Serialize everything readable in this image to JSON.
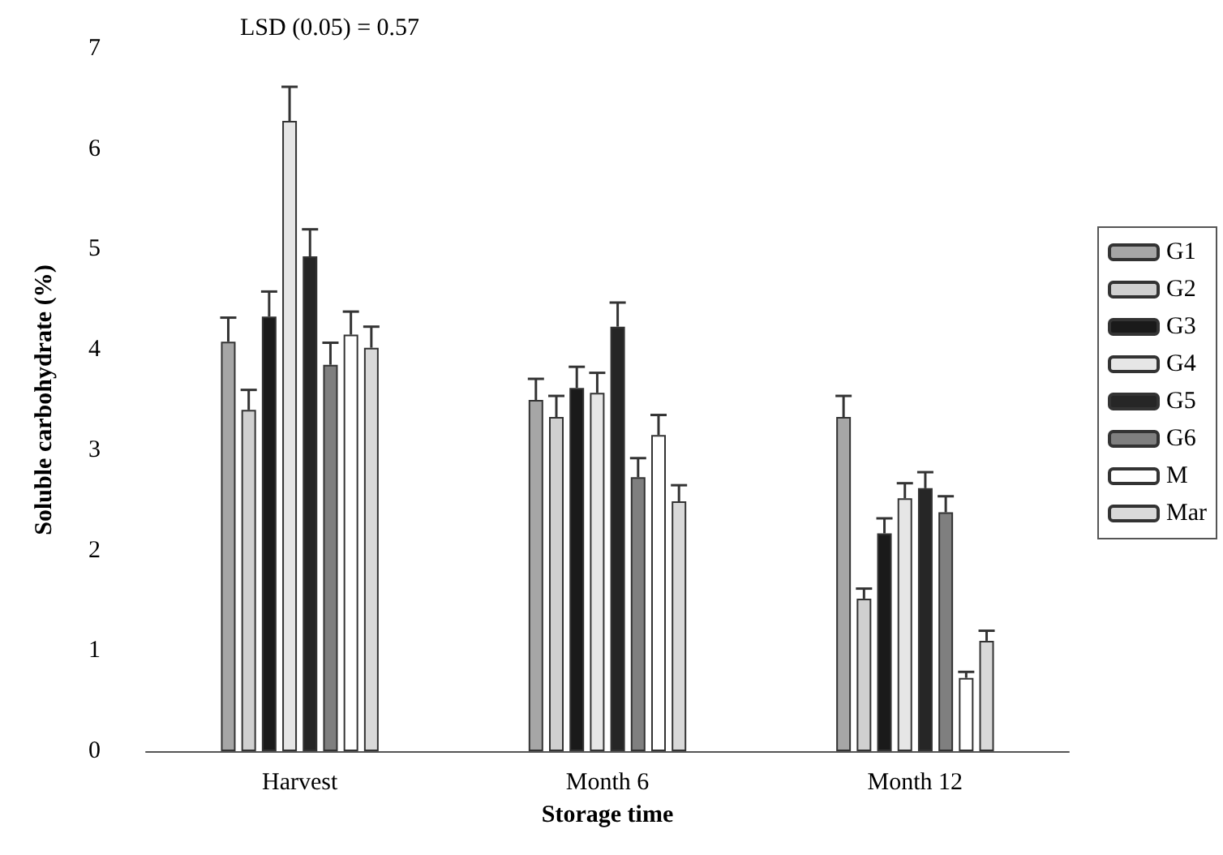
{
  "chart_data": {
    "type": "bar",
    "categories": [
      "Harvest",
      "Month 6",
      "Month 12"
    ],
    "xlabel": "Storage time",
    "ylabel": "Soluble carbohydrate (%)",
    "annotations": [
      "LSD (0.05) = 0.57"
    ],
    "ylim": [
      0,
      7
    ],
    "yticks": [
      0,
      1,
      2,
      3,
      4,
      5,
      6,
      7
    ],
    "grid": false,
    "legend": "right",
    "series": [
      {
        "name": "G1",
        "color": "#a6a6a6",
        "values": [
          4.08,
          3.5,
          3.33
        ],
        "errors": [
          [
            4.08,
            4.32
          ],
          [
            3.5,
            3.71
          ],
          [
            3.33,
            3.54
          ]
        ]
      },
      {
        "name": "G2",
        "color": "#d0d0d0",
        "values": [
          3.4,
          3.33,
          1.52
        ],
        "errors": [
          [
            3.4,
            3.6
          ],
          [
            3.33,
            3.54
          ],
          [
            1.52,
            1.62
          ]
        ]
      },
      {
        "name": "G3",
        "color": "#1a1a1a",
        "values": [
          4.33,
          3.62,
          2.17
        ],
        "errors": [
          [
            4.33,
            4.58
          ],
          [
            3.62,
            3.83
          ],
          [
            2.17,
            2.32
          ]
        ]
      },
      {
        "name": "G4",
        "color": "#e6e6e6",
        "values": [
          6.28,
          3.57,
          2.52
        ],
        "errors": [
          [
            6.28,
            6.62
          ],
          [
            3.57,
            3.77
          ],
          [
            2.52,
            2.67
          ]
        ]
      },
      {
        "name": "G5",
        "color": "#262626",
        "values": [
          4.93,
          4.23,
          2.62
        ],
        "errors": [
          [
            4.93,
            5.2
          ],
          [
            4.23,
            4.47
          ],
          [
            2.62,
            2.78
          ]
        ]
      },
      {
        "name": "G6",
        "color": "#7f7f7f",
        "values": [
          3.85,
          2.73,
          2.38
        ],
        "errors": [
          [
            3.85,
            4.07
          ],
          [
            2.73,
            2.92
          ],
          [
            2.38,
            2.54
          ]
        ]
      },
      {
        "name": "M",
        "color": "#ffffff",
        "values": [
          4.15,
          3.15,
          0.73
        ],
        "errors": [
          [
            4.15,
            4.38
          ],
          [
            3.15,
            3.35
          ],
          [
            0.73,
            0.79
          ]
        ]
      },
      {
        "name": "Mar",
        "color": "#d9d9d9",
        "values": [
          4.02,
          2.49,
          1.1
        ],
        "errors": [
          [
            4.02,
            4.23
          ],
          [
            2.49,
            2.65
          ],
          [
            1.1,
            1.2
          ]
        ]
      }
    ]
  }
}
